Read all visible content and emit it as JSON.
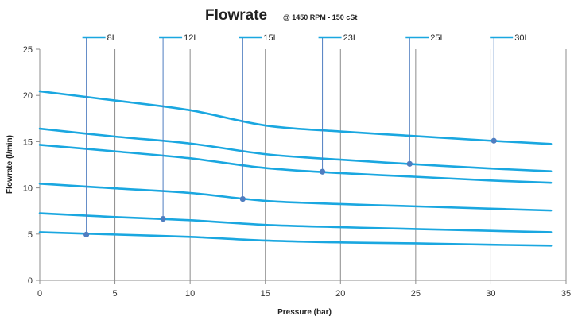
{
  "chart_data": {
    "type": "line",
    "title": "Flowrate",
    "subtitle": "@ 1450 RPM - 150 cSt",
    "xlabel": "Pressure (bar)",
    "ylabel": "Flowrate (l/min)",
    "xlim": [
      0,
      35
    ],
    "ylim": [
      0,
      25
    ],
    "x_ticks": [
      0,
      5,
      10,
      15,
      20,
      25,
      30,
      35
    ],
    "y_ticks": [
      0,
      5,
      10,
      15,
      20,
      25
    ],
    "grid": "vertical",
    "legend_position": "top",
    "line_color": "#1aa7e0",
    "marker_color": "#4f7dc0",
    "leader_color": "#4f7dc0",
    "series": [
      {
        "name": "8L",
        "x": [
          0,
          5,
          10,
          15,
          20,
          25,
          30,
          34
        ],
        "values": [
          5.2,
          4.95,
          4.7,
          4.3,
          4.1,
          4.0,
          3.85,
          3.75
        ],
        "marker": [
          3.1,
          4.95
        ]
      },
      {
        "name": "12L",
        "x": [
          0,
          5,
          10,
          15,
          20,
          25,
          30,
          34
        ],
        "values": [
          7.25,
          6.85,
          6.5,
          6.0,
          5.75,
          5.55,
          5.35,
          5.2
        ],
        "marker": [
          8.2,
          6.65
        ]
      },
      {
        "name": "15L",
        "x": [
          0,
          5,
          10,
          15,
          20,
          25,
          30,
          34
        ],
        "values": [
          10.45,
          9.95,
          9.45,
          8.6,
          8.25,
          8.0,
          7.75,
          7.55
        ],
        "marker": [
          13.5,
          8.8
        ]
      },
      {
        "name": "23L",
        "x": [
          0,
          5,
          10,
          15,
          20,
          25,
          30,
          34
        ],
        "values": [
          14.65,
          13.95,
          13.2,
          12.15,
          11.6,
          11.2,
          10.8,
          10.55
        ],
        "marker": [
          18.8,
          11.75
        ]
      },
      {
        "name": "25L",
        "x": [
          0,
          5,
          10,
          15,
          20,
          25,
          30,
          34
        ],
        "values": [
          16.4,
          15.55,
          14.8,
          13.65,
          13.05,
          12.55,
          12.1,
          11.8
        ],
        "marker": [
          24.6,
          12.6
        ]
      },
      {
        "name": "30L",
        "x": [
          0,
          5,
          10,
          15,
          20,
          25,
          30,
          34
        ],
        "values": [
          20.45,
          19.45,
          18.4,
          16.75,
          16.1,
          15.6,
          15.1,
          14.75
        ],
        "marker": [
          30.2,
          15.1
        ]
      }
    ]
  }
}
